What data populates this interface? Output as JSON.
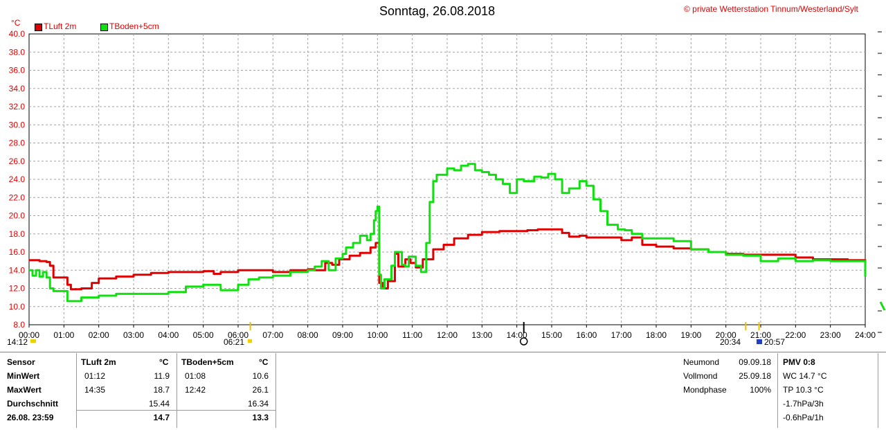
{
  "chart_data": {
    "type": "line",
    "title": "Sonntag, 26.08.2018",
    "copyright": "© private Wetterstation Tinnum/Westerland/Sylt",
    "ylabel": "°C",
    "ylim": [
      8,
      40
    ],
    "yticks": [
      "8.0",
      "10.0",
      "12.0",
      "14.0",
      "16.0",
      "18.0",
      "20.0",
      "22.0",
      "24.0",
      "26.0",
      "28.0",
      "30.0",
      "32.0",
      "34.0",
      "36.0",
      "38.0",
      "40.0"
    ],
    "xlim": [
      0,
      24
    ],
    "xticks": [
      "00:00",
      "01:00",
      "02:00",
      "03:00",
      "04:00",
      "05:00",
      "06:00",
      "07:00",
      "08:00",
      "09:00",
      "10:00",
      "11:00",
      "12:00",
      "13:00",
      "14:00",
      "15:00",
      "16:00",
      "17:00",
      "18:00",
      "19:00",
      "20:00",
      "21:00",
      "22:00",
      "23:00",
      "24:00"
    ],
    "grid": true,
    "legend_position": "top-left",
    "series": [
      {
        "name": "TLuft 2m",
        "color": "#e00000",
        "x": [
          0,
          0.3,
          0.5,
          0.6,
          0.7,
          1.0,
          1.1,
          1.2,
          1.5,
          1.8,
          2.0,
          2.5,
          3.0,
          3.5,
          4.0,
          4.5,
          5.0,
          5.3,
          5.5,
          6.0,
          6.5,
          7.0,
          7.5,
          8.0,
          8.2,
          8.5,
          8.7,
          8.9,
          9.2,
          9.5,
          9.8,
          9.95,
          10.05,
          10.15,
          10.3,
          10.5,
          10.6,
          10.8,
          10.95,
          11.1,
          11.3,
          11.6,
          11.9,
          12.2,
          12.6,
          13.0,
          13.5,
          14.0,
          14.3,
          14.6,
          15.0,
          15.3,
          15.5,
          15.8,
          16.0,
          16.5,
          17.0,
          17.3,
          17.6,
          18.0,
          18.5,
          19.0,
          19.5,
          20.0,
          20.5,
          21.0,
          21.5,
          22.0,
          22.5,
          23.0,
          23.5,
          23.8,
          24.0
        ],
        "y": [
          15.1,
          15.0,
          14.9,
          14.5,
          13.2,
          13.2,
          12.4,
          11.9,
          12.0,
          12.6,
          13.1,
          13.3,
          13.5,
          13.7,
          13.8,
          13.8,
          13.9,
          13.6,
          13.8,
          14.0,
          14.0,
          13.8,
          14.0,
          14.1,
          14.0,
          14.8,
          14.6,
          15.2,
          15.6,
          15.9,
          16.5,
          17.0,
          12.6,
          12.0,
          12.8,
          15.8,
          14.4,
          15.2,
          14.8,
          14.3,
          15.2,
          16.3,
          16.8,
          17.5,
          17.9,
          18.2,
          18.3,
          18.3,
          18.4,
          18.5,
          18.5,
          18.1,
          17.7,
          17.8,
          17.6,
          17.6,
          17.3,
          17.6,
          16.8,
          16.6,
          16.4,
          16.3,
          16.0,
          15.8,
          15.7,
          15.7,
          15.7,
          15.4,
          15.2,
          15.2,
          15.1,
          15.1,
          14.7
        ]
      },
      {
        "name": "TBoden+5cm",
        "color": "#10e010",
        "x": [
          0,
          0.1,
          0.2,
          0.3,
          0.4,
          0.5,
          0.6,
          0.7,
          0.8,
          0.95,
          1.1,
          1.5,
          2.0,
          2.5,
          3.0,
          3.3,
          3.5,
          4.0,
          4.5,
          5.0,
          5.5,
          6.0,
          6.3,
          6.6,
          7.0,
          7.5,
          7.8,
          8.0,
          8.2,
          8.4,
          8.6,
          8.8,
          9.0,
          9.1,
          9.3,
          9.5,
          9.7,
          9.8,
          9.9,
          9.95,
          10.0,
          10.05,
          10.1,
          10.2,
          10.4,
          10.5,
          10.7,
          10.8,
          10.9,
          11.1,
          11.25,
          11.4,
          11.5,
          11.6,
          11.7,
          12.0,
          12.2,
          12.4,
          12.6,
          12.8,
          13.0,
          13.2,
          13.4,
          13.6,
          13.8,
          14.0,
          14.2,
          14.5,
          14.7,
          14.9,
          15.1,
          15.3,
          15.5,
          15.8,
          16.0,
          16.2,
          16.4,
          16.6,
          16.9,
          17.1,
          17.3,
          17.6,
          18.0,
          18.5,
          19.0,
          19.5,
          20.0,
          20.5,
          21.0,
          21.5,
          22.0,
          22.5,
          23.0,
          23.5,
          23.8,
          24.0
        ],
        "y": [
          14.0,
          13.4,
          14.0,
          13.3,
          13.8,
          13.2,
          12.0,
          11.7,
          11.7,
          11.7,
          10.6,
          11.0,
          11.2,
          11.4,
          11.4,
          11.4,
          11.4,
          11.6,
          12.2,
          12.4,
          11.8,
          12.4,
          13.0,
          13.2,
          13.4,
          13.8,
          13.8,
          14.0,
          14.4,
          15.0,
          14.0,
          15.3,
          15.8,
          16.5,
          17.0,
          17.8,
          17.3,
          18.0,
          19.5,
          20.5,
          21.0,
          13.5,
          12.0,
          13.0,
          14.5,
          16.0,
          14.6,
          14.4,
          15.5,
          14.5,
          13.8,
          17.0,
          21.5,
          23.8,
          24.5,
          25.2,
          25.0,
          25.5,
          25.7,
          25.0,
          24.8,
          24.5,
          24.0,
          23.5,
          22.5,
          24.0,
          23.8,
          24.3,
          24.2,
          24.6,
          24.0,
          22.5,
          23.0,
          23.8,
          23.3,
          21.8,
          20.5,
          19.0,
          18.5,
          18.4,
          18.0,
          17.5,
          17.5,
          17.2,
          16.3,
          16.0,
          15.7,
          15.6,
          15.0,
          15.3,
          15.0,
          15.1,
          15.0,
          15.0,
          15.0,
          13.3
        ]
      }
    ],
    "time_markers": [
      {
        "label": "14:12",
        "hour": 14.2
      },
      {
        "label": "06:21",
        "hour": 6.35
      },
      {
        "label": "20:34",
        "hour": 20.57
      },
      {
        "label": "20:57",
        "hour": 20.95
      }
    ]
  },
  "stats": {
    "headers": {
      "sensor": "Sensor",
      "tluft": "TLuft 2m",
      "tluft_unit": "°C",
      "tboden": "TBoden+5cm",
      "tboden_unit": "°C"
    },
    "rows": [
      {
        "label": "MinWert",
        "t1": "01:12",
        "v1": "11.9",
        "t2": "01:08",
        "v2": "10.6"
      },
      {
        "label": "MaxWert",
        "t1": "14:35",
        "v1": "18.7",
        "t2": "12:42",
        "v2": "26.1"
      },
      {
        "label": "Durchschnitt",
        "t1": "",
        "v1": "15.44",
        "t2": "",
        "v2": "16.34"
      },
      {
        "label": "26.08. 23:59",
        "t1": "",
        "v1": "14.7",
        "t2": "",
        "v2": "13.3"
      }
    ]
  },
  "moon": {
    "neumond_label": "Neumond",
    "neumond_date": "09.09.18",
    "vollmond_label": "Vollmond",
    "vollmond_date": "25.09.18",
    "phase_label": "Mondphase",
    "phase_value": "100%"
  },
  "pmv": {
    "title": "PMV 0:8",
    "wc": "WC 14.7 °C",
    "tp": "TP 10.3 °C",
    "p3": "-1.7hPa/3h",
    "p1": "-0.6hPa/1h"
  }
}
